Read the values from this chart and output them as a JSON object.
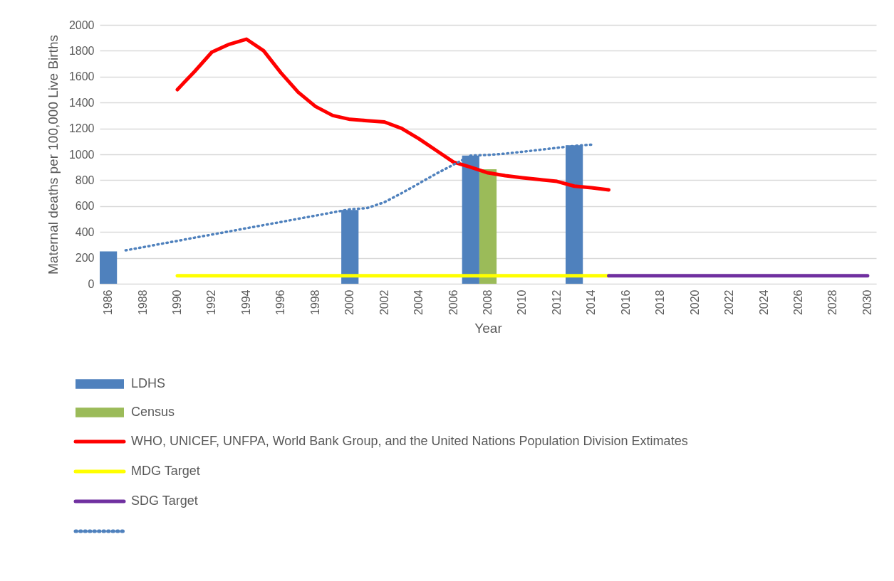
{
  "chart_data": {
    "type": "bar",
    "xlabel": "Year",
    "ylabel": "Maternal deaths per 100,000 Live Births",
    "categories": [
      "1986",
      null,
      "1988",
      null,
      "1990",
      null,
      "1992",
      null,
      "1994",
      null,
      "1996",
      null,
      "1998",
      null,
      "2000",
      null,
      "2002",
      null,
      "2004",
      null,
      "2006",
      null,
      "2008",
      null,
      "2010",
      null,
      "2012",
      null,
      "2014",
      null,
      "2016",
      null,
      "2018",
      null,
      "2020",
      null,
      "2022",
      null,
      "2024",
      null,
      "2026",
      null,
      "2028",
      null,
      "2030"
    ],
    "ylim": [
      0,
      2000
    ],
    "yticks": [
      0,
      200,
      400,
      600,
      800,
      1000,
      1200,
      1400,
      1600,
      1800,
      2000
    ],
    "grid": "y",
    "legend": "bottom",
    "series": [
      {
        "name": "LDHS",
        "color": "#4f81bd",
        "values": [
          250,
          null,
          null,
          null,
          null,
          null,
          null,
          null,
          null,
          null,
          null,
          null,
          null,
          null,
          570,
          null,
          null,
          null,
          null,
          null,
          null,
          990,
          null,
          null,
          null,
          null,
          null,
          1070,
          null,
          null,
          null,
          null,
          null,
          null,
          null,
          null,
          null,
          null,
          null,
          null,
          null,
          null,
          null,
          null,
          null
        ]
      },
      {
        "name": "Census",
        "color": "#9bbb59",
        "values": [
          null,
          null,
          null,
          null,
          null,
          null,
          null,
          null,
          null,
          null,
          null,
          null,
          null,
          null,
          null,
          null,
          null,
          null,
          null,
          null,
          null,
          null,
          885,
          null,
          null,
          null,
          null,
          null,
          null,
          null,
          null,
          null,
          null,
          null,
          null,
          null,
          null,
          null,
          null,
          null,
          null,
          null,
          null,
          null,
          null
        ]
      },
      {
        "name": "WHO, UNICEF, UNFPA, World Bank Group, and the United Nations Population Division Extimates",
        "type": "line",
        "color": "#ff0000",
        "values": [
          null,
          null,
          null,
          null,
          1500,
          1640,
          1790,
          1850,
          1890,
          1800,
          1630,
          1480,
          1370,
          1300,
          1270,
          1260,
          1250,
          1200,
          1120,
          1030,
          940,
          900,
          857,
          835,
          819,
          805,
          791,
          754,
          742,
          725,
          null,
          null,
          null,
          null,
          null,
          null,
          null,
          null,
          null,
          null,
          null,
          null,
          null,
          null,
          null
        ]
      },
      {
        "name": "MDG Target",
        "type": "line",
        "color": "#ffff00",
        "values": [
          null,
          null,
          null,
          null,
          62,
          62,
          62,
          62,
          62,
          62,
          62,
          62,
          62,
          62,
          62,
          62,
          62,
          62,
          62,
          62,
          62,
          62,
          62,
          62,
          62,
          62,
          62,
          62,
          62,
          62,
          null,
          null,
          null,
          null,
          null,
          null,
          null,
          null,
          null,
          null,
          null,
          null,
          null,
          null,
          null
        ]
      },
      {
        "name": "SDG Target",
        "type": "line",
        "color": "#7030a0",
        "values": [
          null,
          null,
          null,
          null,
          null,
          null,
          null,
          null,
          null,
          null,
          null,
          null,
          null,
          null,
          null,
          null,
          null,
          null,
          null,
          null,
          null,
          null,
          null,
          null,
          null,
          null,
          null,
          null,
          null,
          62,
          62,
          62,
          62,
          62,
          62,
          62,
          62,
          62,
          62,
          62,
          62,
          62,
          62,
          62,
          62
        ]
      },
      {
        "type": "line",
        "line_style": "dotted",
        "color": "#4f81bd",
        "values": [
          null,
          258,
          282,
          307,
          331,
          356,
          380,
          404,
          429,
          453,
          477,
          502,
          526,
          551,
          575,
          585,
          630,
          700,
          775,
          850,
          920,
          990,
          995,
          1005,
          1020,
          1035,
          1050,
          1065,
          1075,
          null,
          null,
          null,
          null,
          null,
          null,
          null,
          null,
          null,
          null,
          null,
          null,
          null,
          null,
          null,
          null
        ]
      }
    ]
  }
}
